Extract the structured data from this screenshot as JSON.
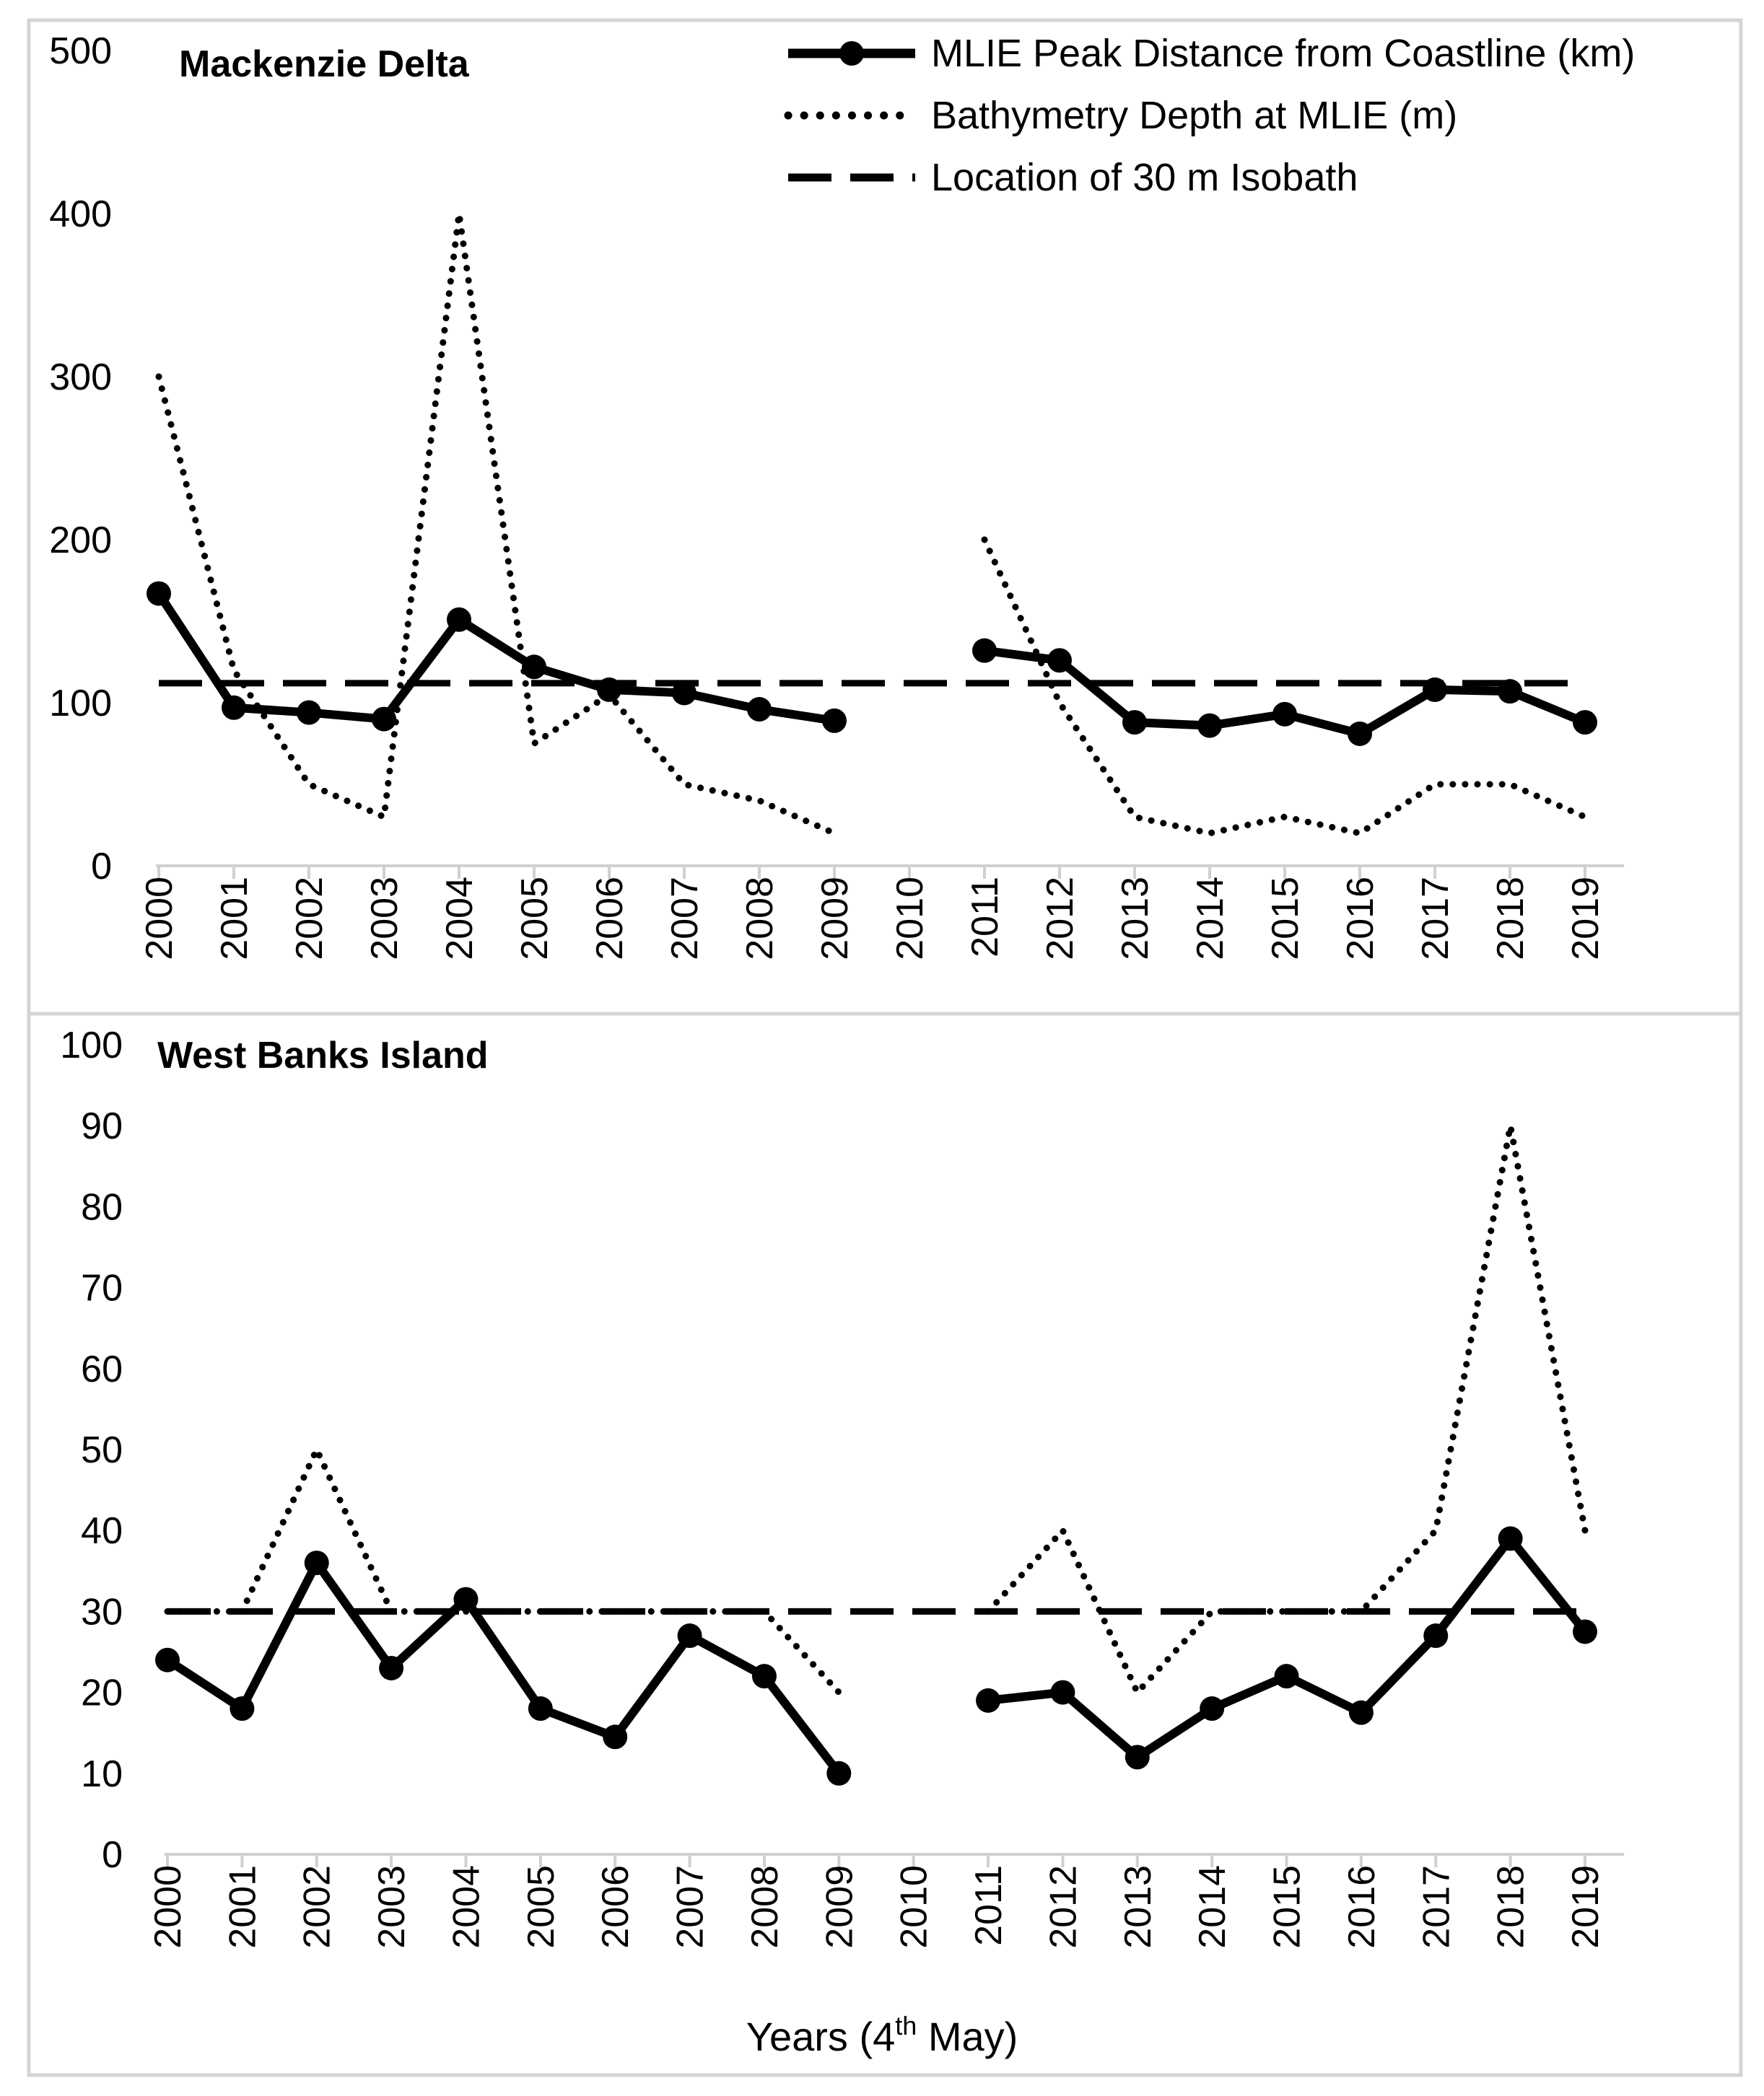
{
  "legend": {
    "peak": "MLIE Peak Distance from Coastline (km)",
    "bathy": "Bathymetry Depth at MLIE (m)",
    "isobath": "Location of 30 m Isobath"
  },
  "xlabel": {
    "main": "Years (4",
    "sup": "th",
    "tail": " May)"
  },
  "chart_data": [
    {
      "type": "line",
      "title": "Mackenzie Delta",
      "categories": [
        "2000",
        "2001",
        "2002",
        "2003",
        "2004",
        "2005",
        "2006",
        "2007",
        "2008",
        "2009",
        "2010",
        "2011",
        "2012",
        "2013",
        "2014",
        "2015",
        "2016",
        "2017",
        "2018",
        "2019"
      ],
      "ylim": [
        0,
        500
      ],
      "yticks": [
        0,
        100,
        200,
        300,
        400,
        500
      ],
      "series": [
        {
          "name": "MLIE Peak Distance from Coastline (km)",
          "style": "solid-markers",
          "values": [
            167,
            97,
            94,
            90,
            151,
            122,
            108,
            106,
            96,
            89,
            null,
            132,
            126,
            88,
            86,
            93,
            81,
            108,
            107,
            88
          ]
        },
        {
          "name": "Bathymetry Depth at MLIE (m)",
          "style": "dotted",
          "values": [
            300,
            120,
            50,
            30,
            400,
            75,
            105,
            50,
            40,
            20,
            null,
            200,
            100,
            30,
            20,
            30,
            20,
            50,
            50,
            30
          ]
        },
        {
          "name": "Location of 30 m Isobath",
          "style": "dashed",
          "values": [
            112,
            112,
            112,
            112,
            112,
            112,
            112,
            112,
            112,
            112,
            112,
            112,
            112,
            112,
            112,
            112,
            112,
            112,
            112,
            112
          ]
        }
      ]
    },
    {
      "type": "line",
      "title": "West Banks Island",
      "categories": [
        "2000",
        "2001",
        "2002",
        "2003",
        "2004",
        "2005",
        "2006",
        "2007",
        "2008",
        "2009",
        "2010",
        "2011",
        "2012",
        "2013",
        "2014",
        "2015",
        "2016",
        "2017",
        "2018",
        "2019"
      ],
      "ylim": [
        0,
        100
      ],
      "yticks": [
        0,
        10,
        20,
        30,
        40,
        50,
        60,
        70,
        80,
        90,
        100
      ],
      "series": [
        {
          "name": "MLIE Peak Distance from Coastline (km)",
          "style": "solid-markers",
          "values": [
            24,
            18,
            36,
            23,
            31.5,
            18,
            14.5,
            27,
            22,
            10,
            null,
            19,
            20,
            12,
            18,
            22,
            17.5,
            27,
            39,
            27.5
          ]
        },
        {
          "name": "Bathymetry Depth at MLIE (m)",
          "style": "dotted",
          "values": [
            30,
            30,
            50,
            30,
            30,
            30,
            30,
            30,
            30,
            20,
            null,
            30,
            40,
            20,
            30,
            30,
            30,
            40,
            90,
            40
          ]
        },
        {
          "name": "Location of 30 m Isobath",
          "style": "dashed",
          "values": [
            30,
            30,
            30,
            30,
            30,
            30,
            30,
            30,
            30,
            30,
            30,
            30,
            30,
            30,
            30,
            30,
            30,
            30,
            30,
            30
          ]
        }
      ]
    }
  ]
}
